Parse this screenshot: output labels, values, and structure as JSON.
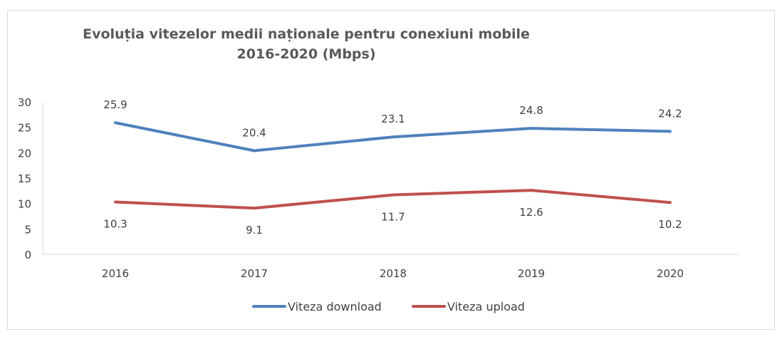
{
  "chart_data": {
    "type": "line",
    "title": "Evoluția vitezelor medii naționale pentru conexiuni mobile",
    "subtitle": "2016-2020 (Mbps)",
    "xlabel": "",
    "ylabel": "",
    "categories": [
      "2016",
      "2017",
      "2018",
      "2019",
      "2020"
    ],
    "ylim": [
      0,
      30
    ],
    "yticks": [
      "0",
      "5",
      "10",
      "15",
      "20",
      "25",
      "30"
    ],
    "grid": false,
    "legend_position": "bottom",
    "series": [
      {
        "name": "Viteza download",
        "color": "#4f81bd",
        "values": [
          25.9,
          20.4,
          23.1,
          24.8,
          24.2
        ],
        "labels": [
          "25.9",
          "20.4",
          "23.1",
          "24.8",
          "24.2"
        ],
        "label_position": "above"
      },
      {
        "name": "Viteza upload",
        "color": "#c0504d",
        "values": [
          10.3,
          9.1,
          11.7,
          12.6,
          10.2
        ],
        "labels": [
          "10.3",
          "9.1",
          "11.7",
          "12.6",
          "10.2"
        ],
        "label_position": "below"
      }
    ]
  }
}
